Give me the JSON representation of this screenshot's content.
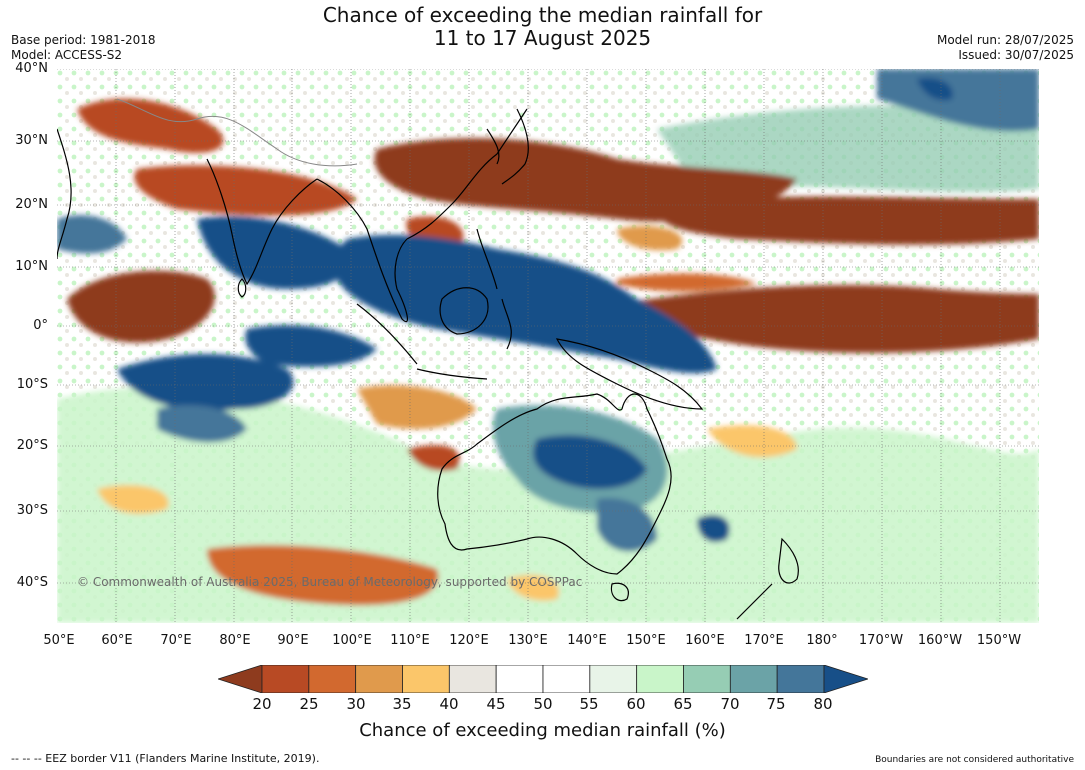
{
  "title": {
    "line1": "Chance of exceeding the median rainfall for",
    "line2": "11 to 17 August 2025"
  },
  "meta_left": {
    "base_period": "Base period: 1981-2018",
    "model": "Model: ACCESS-S2"
  },
  "meta_right": {
    "model_run": "Model run: 28/07/2025",
    "issued": "Issued: 30/07/2025"
  },
  "map": {
    "lat_labels": [
      "40°N",
      "30°N",
      "20°N",
      "10°N",
      "0°",
      "10°S",
      "20°S",
      "30°S",
      "40°S"
    ],
    "lon_labels": [
      "50°E",
      "60°E",
      "70°E",
      "80°E",
      "90°E",
      "100°E",
      "110°E",
      "120°E",
      "130°E",
      "140°E",
      "150°E",
      "160°E",
      "170°E",
      "180°",
      "170°W",
      "160°W",
      "150°W"
    ],
    "copyright": "© Commonwealth of Australia 2025, Bureau of Meteorology, supported by COSPPac"
  },
  "colorbar": {
    "ticks": [
      "20",
      "25",
      "30",
      "35",
      "40",
      "45",
      "50",
      "55",
      "60",
      "65",
      "70",
      "75",
      "80"
    ],
    "colors": [
      "#8e3b1e",
      "#b84a24",
      "#d2692f",
      "#e09a4c",
      "#fbc66a",
      "#e9e6e0",
      "#ffffff",
      "#ffffff",
      "#e8f4e8",
      "#c9f5c9",
      "#96cdb4",
      "#6ba3a7",
      "#44769a",
      "#174f88"
    ],
    "label": "Chance of exceeding median rainfall (%)"
  },
  "footer": {
    "eez": "--  --  -- EEZ border V11 (Flanders Marine Institute, 2019).",
    "boundaries": "Boundaries are not considered authoritative"
  }
}
